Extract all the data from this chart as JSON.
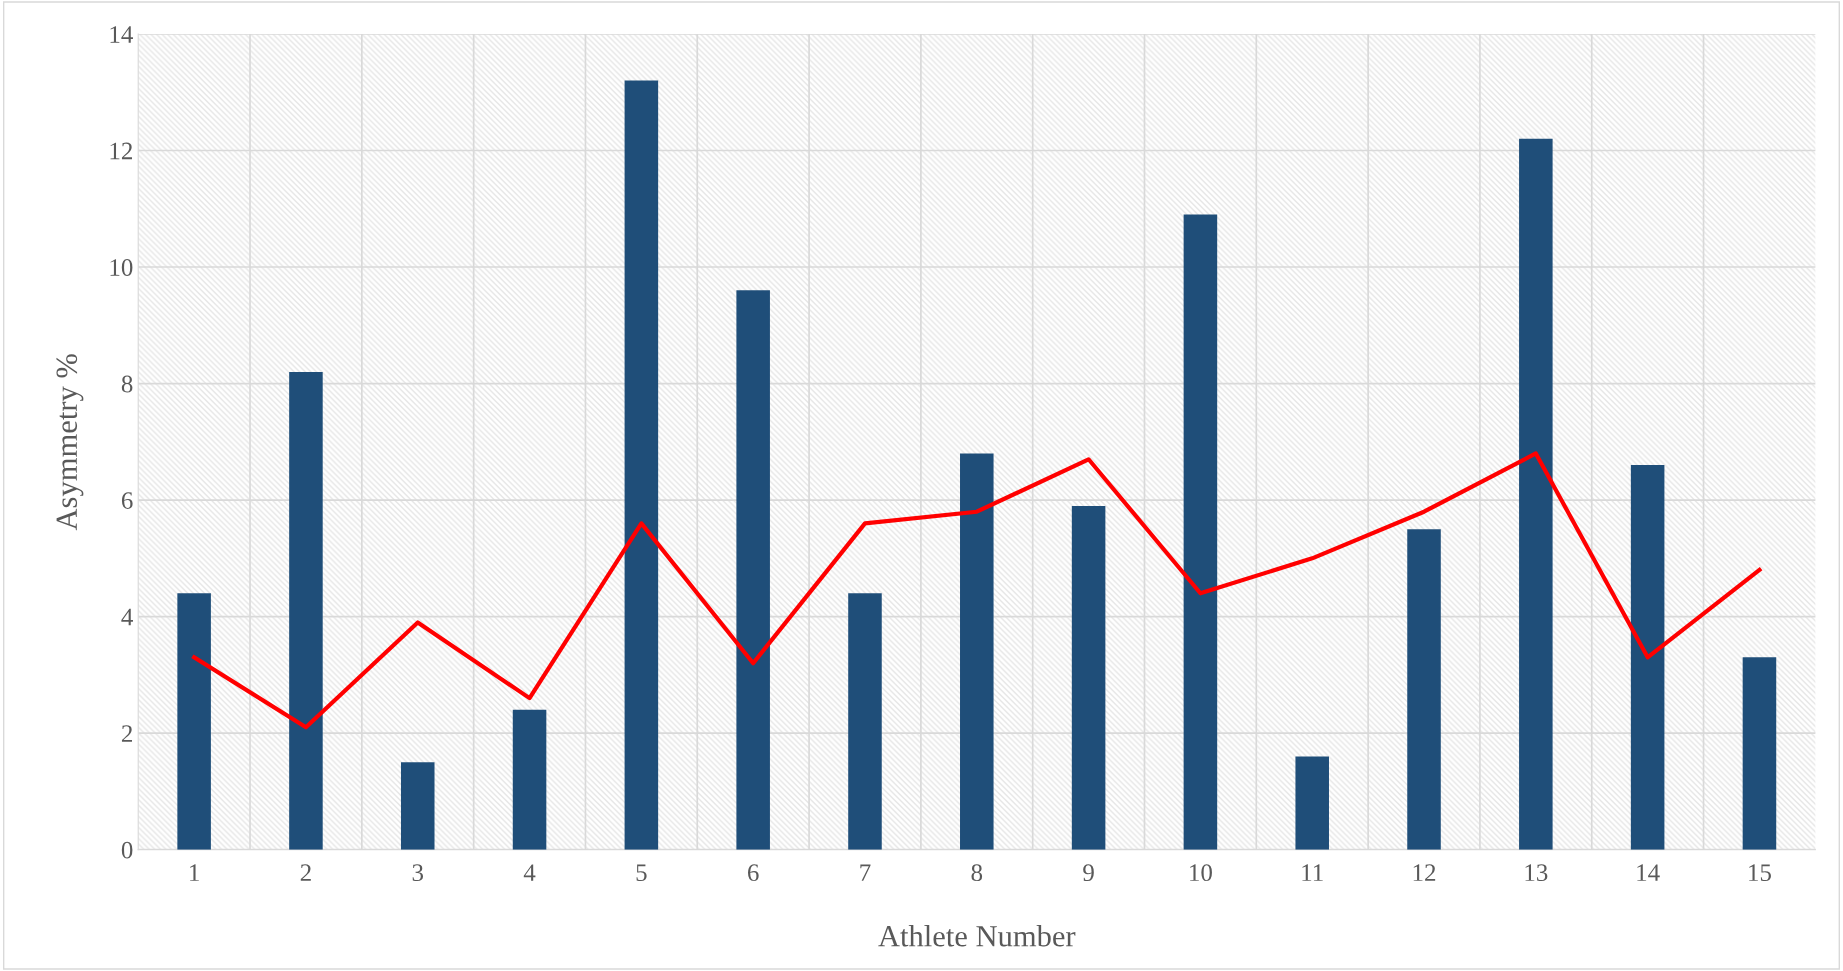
{
  "chart_data": {
    "type": "bar",
    "xlabel": "Athlete Number",
    "ylabel": "Asymmetry %",
    "categories": [
      "1",
      "2",
      "3",
      "4",
      "5",
      "6",
      "7",
      "8",
      "9",
      "10",
      "11",
      "12",
      "13",
      "14",
      "15"
    ],
    "series": [
      {
        "color": "#1f4e79",
        "values": [
          4.4,
          8.2,
          1.5,
          2.4,
          13.2,
          9.6,
          4.4,
          6.8,
          5.9,
          10.9,
          1.6,
          5.5,
          12.2,
          6.6,
          3.3
        ]
      },
      {
        "type": "line",
        "color": "#ff0000",
        "values": [
          3.3,
          2.1,
          3.9,
          2.6,
          5.6,
          3.2,
          5.6,
          5.8,
          6.7,
          4.4,
          5.0,
          5.8,
          6.8,
          3.3,
          4.8
        ]
      }
    ],
    "ylim": [
      0,
      14
    ],
    "yticks": [
      0,
      2,
      4,
      6,
      8,
      10,
      12,
      14
    ],
    "grid": true,
    "legend": false,
    "marker": "none",
    "line_style": "solid"
  }
}
